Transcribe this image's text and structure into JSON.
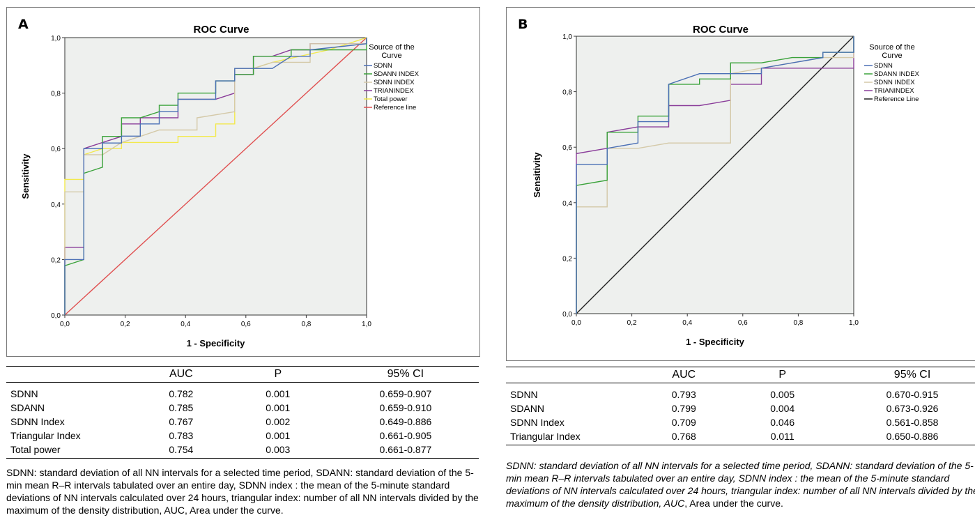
{
  "chart_data": [
    {
      "type": "line",
      "panel_label": "A",
      "title": "ROC Curve",
      "xlabel": "1 - Specificity",
      "ylabel": "Sensitivity",
      "xlim": [
        0,
        1
      ],
      "ylim": [
        0,
        1
      ],
      "xticks": [
        "0,0",
        "0,2",
        "0,4",
        "0,6",
        "0,8",
        "1,0"
      ],
      "yticks": [
        "0,0",
        "0,2",
        "0,4",
        "0,6",
        "0,8",
        "1,0"
      ],
      "legend_title": "Source of the Curve",
      "legend_position": "right",
      "grid": false,
      "series": [
        {
          "name": "SDNN",
          "color": "#4a6fb5",
          "points": [
            [
              0,
              0
            ],
            [
              0,
              0.2
            ],
            [
              0.063,
              0.2
            ],
            [
              0.063,
              0.6
            ],
            [
              0.125,
              0.6
            ],
            [
              0.125,
              0.62
            ],
            [
              0.188,
              0.62
            ],
            [
              0.188,
              0.645
            ],
            [
              0.25,
              0.645
            ],
            [
              0.25,
              0.667
            ],
            [
              0.25,
              0.689
            ],
            [
              0.313,
              0.689
            ],
            [
              0.313,
              0.733
            ],
            [
              0.375,
              0.733
            ],
            [
              0.375,
              0.778
            ],
            [
              0.5,
              0.778
            ],
            [
              0.5,
              0.844
            ],
            [
              0.563,
              0.844
            ],
            [
              0.563,
              0.889
            ],
            [
              0.688,
              0.889
            ],
            [
              0.75,
              0.933
            ],
            [
              0.813,
              0.933
            ],
            [
              0.813,
              0.956
            ],
            [
              1,
              0.978
            ],
            [
              1,
              1
            ]
          ]
        },
        {
          "name": "SDANN INDEX",
          "color": "#3aa23a",
          "points": [
            [
              0,
              0
            ],
            [
              0,
              0.178
            ],
            [
              0.063,
              0.2
            ],
            [
              0.063,
              0.511
            ],
            [
              0.125,
              0.533
            ],
            [
              0.125,
              0.644
            ],
            [
              0.188,
              0.644
            ],
            [
              0.188,
              0.711
            ],
            [
              0.25,
              0.711
            ],
            [
              0.313,
              0.733
            ],
            [
              0.313,
              0.756
            ],
            [
              0.375,
              0.756
            ],
            [
              0.375,
              0.8
            ],
            [
              0.5,
              0.8
            ],
            [
              0.5,
              0.844
            ],
            [
              0.563,
              0.844
            ],
            [
              0.563,
              0.867
            ],
            [
              0.625,
              0.867
            ],
            [
              0.625,
              0.933
            ],
            [
              0.75,
              0.933
            ],
            [
              0.75,
              0.956
            ],
            [
              0.875,
              0.956
            ],
            [
              1,
              0.956
            ],
            [
              1,
              1
            ]
          ]
        },
        {
          "name": "SDNN INDEX",
          "color": "#d4c9a8",
          "points": [
            [
              0,
              0
            ],
            [
              0,
              0.444
            ],
            [
              0.063,
              0.444
            ],
            [
              0.063,
              0.578
            ],
            [
              0.125,
              0.578
            ],
            [
              0.188,
              0.622
            ],
            [
              0.25,
              0.644
            ],
            [
              0.313,
              0.667
            ],
            [
              0.375,
              0.667
            ],
            [
              0.438,
              0.667
            ],
            [
              0.438,
              0.711
            ],
            [
              0.563,
              0.733
            ],
            [
              0.563,
              0.889
            ],
            [
              0.625,
              0.889
            ],
            [
              0.688,
              0.911
            ],
            [
              0.813,
              0.911
            ],
            [
              0.813,
              0.978
            ],
            [
              1,
              0.978
            ],
            [
              1,
              1
            ]
          ]
        },
        {
          "name": "TRIANINDEX",
          "color": "#8a3d9a",
          "points": [
            [
              0,
              0
            ],
            [
              0,
              0.244
            ],
            [
              0.063,
              0.244
            ],
            [
              0.063,
              0.6
            ],
            [
              0.125,
              0.622
            ],
            [
              0.188,
              0.644
            ],
            [
              0.188,
              0.689
            ],
            [
              0.25,
              0.689
            ],
            [
              0.25,
              0.711
            ],
            [
              0.375,
              0.711
            ],
            [
              0.375,
              0.778
            ],
            [
              0.5,
              0.778
            ],
            [
              0.563,
              0.8
            ],
            [
              0.563,
              0.867
            ],
            [
              0.625,
              0.867
            ],
            [
              0.625,
              0.933
            ],
            [
              0.688,
              0.933
            ],
            [
              0.75,
              0.956
            ],
            [
              0.813,
              0.956
            ],
            [
              0.813,
              0.978
            ],
            [
              1,
              0.978
            ],
            [
              1,
              1
            ]
          ]
        },
        {
          "name": "Total power",
          "color": "#f2e94c",
          "points": [
            [
              0,
              0
            ],
            [
              0,
              0.489
            ],
            [
              0.063,
              0.489
            ],
            [
              0.063,
              0.578
            ],
            [
              0.125,
              0.6
            ],
            [
              0.188,
              0.6
            ],
            [
              0.188,
              0.622
            ],
            [
              0.313,
              0.622
            ],
            [
              0.375,
              0.622
            ],
            [
              0.375,
              0.644
            ],
            [
              0.5,
              0.644
            ],
            [
              0.5,
              0.689
            ],
            [
              0.563,
              0.689
            ],
            [
              0.563,
              0.889
            ],
            [
              0.625,
              0.889
            ],
            [
              0.688,
              0.911
            ],
            [
              0.875,
              0.956
            ],
            [
              0.938,
              0.978
            ],
            [
              1,
              1
            ]
          ]
        },
        {
          "name": "Reference line",
          "color": "#e05050",
          "points": [
            [
              0,
              0
            ],
            [
              1,
              1
            ]
          ]
        }
      ]
    },
    {
      "type": "line",
      "panel_label": "B",
      "title": "ROC Curve",
      "xlabel": "1 - Specificity",
      "ylabel": "Sensitivity",
      "xlim": [
        0,
        1
      ],
      "ylim": [
        0,
        1
      ],
      "xticks": [
        "0,0",
        "0,2",
        "0,4",
        "0,6",
        "0,8",
        "1,0"
      ],
      "yticks": [
        "0,0",
        "0,2",
        "0,4",
        "0,6",
        "0,8",
        "1,0"
      ],
      "legend_title": "Source of the Curve",
      "legend_position": "right",
      "grid": false,
      "series": [
        {
          "name": "SDNN",
          "color": "#4a6fb5",
          "points": [
            [
              0,
              0
            ],
            [
              0,
              0.538
            ],
            [
              0.111,
              0.538
            ],
            [
              0.111,
              0.596
            ],
            [
              0.222,
              0.615
            ],
            [
              0.222,
              0.692
            ],
            [
              0.333,
              0.692
            ],
            [
              0.333,
              0.827
            ],
            [
              0.444,
              0.865
            ],
            [
              0.556,
              0.865
            ],
            [
              0.667,
              0.865
            ],
            [
              0.667,
              0.885
            ],
            [
              0.889,
              0.923
            ],
            [
              0.889,
              0.942
            ],
            [
              1,
              0.942
            ],
            [
              1,
              1
            ]
          ]
        },
        {
          "name": "SDANN INDEX",
          "color": "#3aa23a",
          "points": [
            [
              0,
              0
            ],
            [
              0,
              0.462
            ],
            [
              0.111,
              0.481
            ],
            [
              0.111,
              0.654
            ],
            [
              0.222,
              0.654
            ],
            [
              0.222,
              0.712
            ],
            [
              0.333,
              0.712
            ],
            [
              0.333,
              0.827
            ],
            [
              0.444,
              0.827
            ],
            [
              0.444,
              0.846
            ],
            [
              0.556,
              0.846
            ],
            [
              0.556,
              0.904
            ],
            [
              0.667,
              0.904
            ],
            [
              0.778,
              0.923
            ],
            [
              0.889,
              0.923
            ],
            [
              0.889,
              0.942
            ],
            [
              1,
              0.942
            ],
            [
              1,
              1
            ]
          ]
        },
        {
          "name": "SDNN INDEX",
          "color": "#d4c9a8",
          "points": [
            [
              0,
              0
            ],
            [
              0,
              0.385
            ],
            [
              0.111,
              0.385
            ],
            [
              0.111,
              0.596
            ],
            [
              0.222,
              0.596
            ],
            [
              0.333,
              0.615
            ],
            [
              0.556,
              0.615
            ],
            [
              0.556,
              0.865
            ],
            [
              0.667,
              0.885
            ],
            [
              0.778,
              0.904
            ],
            [
              0.889,
              0.923
            ],
            [
              1,
              0.923
            ],
            [
              1,
              1
            ]
          ]
        },
        {
          "name": "TRIANINDEX",
          "color": "#8a3d9a",
          "points": [
            [
              0,
              0
            ],
            [
              0,
              0.577
            ],
            [
              0.111,
              0.596
            ],
            [
              0.111,
              0.654
            ],
            [
              0.222,
              0.673
            ],
            [
              0.333,
              0.673
            ],
            [
              0.333,
              0.75
            ],
            [
              0.444,
              0.75
            ],
            [
              0.556,
              0.769
            ],
            [
              0.556,
              0.827
            ],
            [
              0.667,
              0.827
            ],
            [
              0.667,
              0.885
            ],
            [
              0.778,
              0.885
            ],
            [
              1,
              0.885
            ],
            [
              1,
              1
            ]
          ]
        },
        {
          "name": "Reference Line",
          "color": "#222222",
          "points": [
            [
              0,
              0
            ],
            [
              1,
              1
            ]
          ]
        }
      ]
    }
  ],
  "tableA": {
    "headers": [
      "",
      "AUC",
      "P",
      "95% CI"
    ],
    "rows": [
      [
        "SDNN",
        "0.782",
        "0.001",
        "0.659-0.907"
      ],
      [
        "SDANN",
        "0.785",
        "0.001",
        "0.659-0.910"
      ],
      [
        "SDNN Index",
        "0.767",
        "0.002",
        "0.649-0.886"
      ],
      [
        "Triangular Index",
        "0.783",
        "0.001",
        "0.661-0.905"
      ],
      [
        "Total power",
        "0.754",
        "0.003",
        "0.661-0.877"
      ]
    ]
  },
  "tableB": {
    "headers": [
      "",
      "AUC",
      "P",
      "95% CI"
    ],
    "rows": [
      [
        "SDNN",
        "0.793",
        "0.005",
        "0.670-0.915"
      ],
      [
        "SDANN",
        "0.799",
        "0.004",
        "0.673-0.926"
      ],
      [
        "SDNN Index",
        "0.709",
        "0.046",
        "0.561-0.858"
      ],
      [
        "Triangular Index",
        "0.768",
        "0.011",
        "0.650-0.886"
      ]
    ]
  },
  "noteA": "SDNN: standard deviation of all NN intervals for a selected time period, SDANN: standard deviation of the 5-min mean R–R intervals tabulated over an entire day, SDNN index : the mean of the 5-minute standard deviations of NN intervals calculated over 24 hours, triangular index: number of all NN intervals divided by the maximum of the density distribution, AUC, Area under the curve.",
  "noteB_italic": "SDNN: standard deviation of all NN intervals for a selected time period, SDANN: standard deviation of the 5-min mean R–R intervals tabulated over an entire day, SDNN index : the mean of the 5-minute standard deviations of NN intervals calculated over 24 hours, triangular index: number of all NN intervals divided by the maximum of the density distribution, AUC",
  "noteB_plain": ", Area under the curve."
}
